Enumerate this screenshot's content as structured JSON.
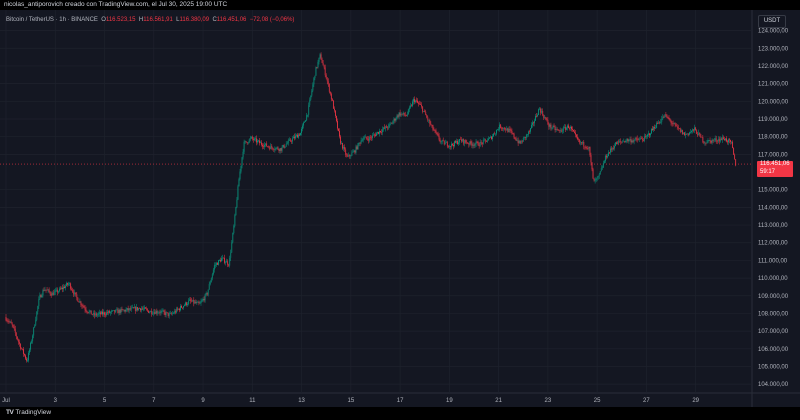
{
  "header": {
    "creator_line": "nicolas_antiporovich creado con TradingView.com, el Jul 30, 2025 19:00 UTC"
  },
  "legend": {
    "symbol": "Bitcoin / TetherUS · 1h · BINANCE",
    "o_label": "O",
    "o_value": "116.523,15",
    "h_label": "H",
    "h_value": "116.561,91",
    "l_label": "L",
    "l_value": "116.380,09",
    "c_label": "C",
    "c_value": "116.451,06",
    "change": "−72,08 (−0,06%)"
  },
  "toolbar": {
    "currency": "USDT"
  },
  "price_tag": {
    "price": "116.451,06",
    "countdown": "59:17"
  },
  "footer": {
    "logo_mark": "TV",
    "logo_text": "TradingView"
  },
  "colors": {
    "up": "#089981",
    "down": "#f23645",
    "background": "#141722",
    "grid": "#1e222d",
    "axis_text": "#b2b5be"
  },
  "chart_data": {
    "type": "candlestick",
    "title": "Bitcoin / TetherUS · 1h · BINANCE",
    "y_axis_position": "right",
    "ylim": [
      103500,
      124600
    ],
    "y_ticks": [
      {
        "value": 124000,
        "label": "124.000,00"
      },
      {
        "value": 123000,
        "label": "123.000,00"
      },
      {
        "value": 122000,
        "label": "122.000,00"
      },
      {
        "value": 121000,
        "label": "121.000,00"
      },
      {
        "value": 120000,
        "label": "120.000,00"
      },
      {
        "value": 119000,
        "label": "119.000,00"
      },
      {
        "value": 118000,
        "label": "118.000,00"
      },
      {
        "value": 117000,
        "label": "117.000,00"
      },
      {
        "value": 115000,
        "label": "115.000,00"
      },
      {
        "value": 114000,
        "label": "114.000,00"
      },
      {
        "value": 113000,
        "label": "113.000,00"
      },
      {
        "value": 112000,
        "label": "112.000,00"
      },
      {
        "value": 111000,
        "label": "111.000,00"
      },
      {
        "value": 110000,
        "label": "110.000,00"
      },
      {
        "value": 109000,
        "label": "109.000,00"
      },
      {
        "value": 108000,
        "label": "108.000,00"
      },
      {
        "value": 107000,
        "label": "107.000,00"
      },
      {
        "value": 106000,
        "label": "106.000,00"
      },
      {
        "value": 105000,
        "label": "105.000,00"
      },
      {
        "value": 104000,
        "label": "104.000,00"
      }
    ],
    "x_ticks": [
      {
        "day": 1,
        "label": "Jul"
      },
      {
        "day": 3,
        "label": "3"
      },
      {
        "day": 5,
        "label": "5"
      },
      {
        "day": 7,
        "label": "7"
      },
      {
        "day": 9,
        "label": "9"
      },
      {
        "day": 11,
        "label": "11"
      },
      {
        "day": 13,
        "label": "13"
      },
      {
        "day": 15,
        "label": "15"
      },
      {
        "day": 17,
        "label": "17"
      },
      {
        "day": 19,
        "label": "19"
      },
      {
        "day": 21,
        "label": "21"
      },
      {
        "day": 23,
        "label": "23"
      },
      {
        "day": 25,
        "label": "25"
      },
      {
        "day": 27,
        "label": "27"
      },
      {
        "day": 29,
        "label": "29"
      }
    ],
    "x_range_days": [
      1,
      30.8
    ],
    "grid": true,
    "last_price": 116451.06,
    "price_path": [
      {
        "day": 1.0,
        "price": 107800
      },
      {
        "day": 1.3,
        "price": 107300
      },
      {
        "day": 1.6,
        "price": 106200
      },
      {
        "day": 1.9,
        "price": 105300
      },
      {
        "day": 2.1,
        "price": 106600
      },
      {
        "day": 2.4,
        "price": 108900
      },
      {
        "day": 2.6,
        "price": 109400
      },
      {
        "day": 2.9,
        "price": 109100
      },
      {
        "day": 3.2,
        "price": 109300
      },
      {
        "day": 3.6,
        "price": 109700
      },
      {
        "day": 3.9,
        "price": 108900
      },
      {
        "day": 4.3,
        "price": 108200
      },
      {
        "day": 4.6,
        "price": 107900
      },
      {
        "day": 5.0,
        "price": 108000
      },
      {
        "day": 5.5,
        "price": 108100
      },
      {
        "day": 6.0,
        "price": 108200
      },
      {
        "day": 6.5,
        "price": 108300
      },
      {
        "day": 6.9,
        "price": 108100
      },
      {
        "day": 7.3,
        "price": 108100
      },
      {
        "day": 7.7,
        "price": 107900
      },
      {
        "day": 8.1,
        "price": 108300
      },
      {
        "day": 8.5,
        "price": 108700
      },
      {
        "day": 8.9,
        "price": 108500
      },
      {
        "day": 9.2,
        "price": 109100
      },
      {
        "day": 9.5,
        "price": 110700
      },
      {
        "day": 9.8,
        "price": 111100
      },
      {
        "day": 10.1,
        "price": 110800
      },
      {
        "day": 10.3,
        "price": 113000
      },
      {
        "day": 10.5,
        "price": 115600
      },
      {
        "day": 10.7,
        "price": 117600
      },
      {
        "day": 11.0,
        "price": 117900
      },
      {
        "day": 11.4,
        "price": 117600
      },
      {
        "day": 11.8,
        "price": 117400
      },
      {
        "day": 12.2,
        "price": 117300
      },
      {
        "day": 12.6,
        "price": 117800
      },
      {
        "day": 13.0,
        "price": 118200
      },
      {
        "day": 13.3,
        "price": 119400
      },
      {
        "day": 13.6,
        "price": 121700
      },
      {
        "day": 13.8,
        "price": 122600
      },
      {
        "day": 14.0,
        "price": 121600
      },
      {
        "day": 14.3,
        "price": 119900
      },
      {
        "day": 14.6,
        "price": 117800
      },
      {
        "day": 14.9,
        "price": 116800
      },
      {
        "day": 15.2,
        "price": 117200
      },
      {
        "day": 15.5,
        "price": 117900
      },
      {
        "day": 15.8,
        "price": 117900
      },
      {
        "day": 16.2,
        "price": 118300
      },
      {
        "day": 16.6,
        "price": 118600
      },
      {
        "day": 17.0,
        "price": 119300
      },
      {
        "day": 17.3,
        "price": 119200
      },
      {
        "day": 17.6,
        "price": 120100
      },
      {
        "day": 17.9,
        "price": 119700
      },
      {
        "day": 18.3,
        "price": 118600
      },
      {
        "day": 18.7,
        "price": 117700
      },
      {
        "day": 19.1,
        "price": 117500
      },
      {
        "day": 19.5,
        "price": 117800
      },
      {
        "day": 19.9,
        "price": 117600
      },
      {
        "day": 20.3,
        "price": 117600
      },
      {
        "day": 20.7,
        "price": 117900
      },
      {
        "day": 21.1,
        "price": 118600
      },
      {
        "day": 21.5,
        "price": 118300
      },
      {
        "day": 21.9,
        "price": 117600
      },
      {
        "day": 22.3,
        "price": 118300
      },
      {
        "day": 22.7,
        "price": 119600
      },
      {
        "day": 23.1,
        "price": 118600
      },
      {
        "day": 23.5,
        "price": 118300
      },
      {
        "day": 23.9,
        "price": 118600
      },
      {
        "day": 24.3,
        "price": 117700
      },
      {
        "day": 24.7,
        "price": 117400
      },
      {
        "day": 24.9,
        "price": 115400
      },
      {
        "day": 25.1,
        "price": 115700
      },
      {
        "day": 25.4,
        "price": 116900
      },
      {
        "day": 25.8,
        "price": 117600
      },
      {
        "day": 26.2,
        "price": 117800
      },
      {
        "day": 26.6,
        "price": 117800
      },
      {
        "day": 27.0,
        "price": 117900
      },
      {
        "day": 27.4,
        "price": 118600
      },
      {
        "day": 27.8,
        "price": 119200
      },
      {
        "day": 28.2,
        "price": 118600
      },
      {
        "day": 28.6,
        "price": 118100
      },
      {
        "day": 29.0,
        "price": 118400
      },
      {
        "day": 29.4,
        "price": 117700
      },
      {
        "day": 29.8,
        "price": 117800
      },
      {
        "day": 30.2,
        "price": 117900
      },
      {
        "day": 30.5,
        "price": 117600
      },
      {
        "day": 30.65,
        "price": 116451
      }
    ]
  }
}
